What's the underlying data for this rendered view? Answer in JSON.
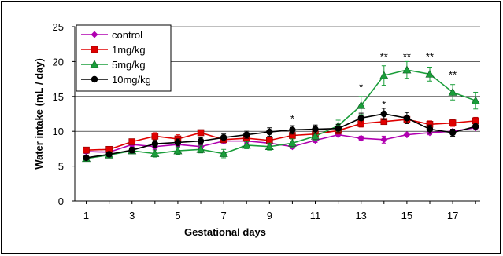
{
  "chart_data": {
    "type": "line",
    "xlabel": "Gestational days",
    "ylabel": "Water intake (mL / day)",
    "x": [
      1,
      2,
      3,
      4,
      5,
      6,
      7,
      8,
      9,
      10,
      11,
      12,
      13,
      14,
      15,
      16,
      17,
      18
    ],
    "xticks": [
      "1",
      "3",
      "5",
      "7",
      "9",
      "11",
      "13",
      "15",
      "17"
    ],
    "yticks": [
      "0",
      "5",
      "10",
      "15",
      "20",
      "25"
    ],
    "ylim": [
      0,
      25
    ],
    "xlim": [
      0.5,
      18.2
    ],
    "grid": "horizontal",
    "legend_position": "top-left",
    "series": [
      {
        "name": "control",
        "color": "#b000b0",
        "marker": "diamond",
        "values": [
          7.1,
          7.0,
          8.1,
          7.8,
          8.1,
          7.8,
          8.6,
          8.6,
          8.3,
          7.8,
          8.7,
          9.5,
          9.0,
          8.8,
          9.5,
          9.8,
          10.0,
          10.5
        ],
        "errors": [
          0.3,
          0.3,
          0.3,
          0.4,
          0.3,
          0.3,
          0.3,
          0.3,
          0.3,
          0.3,
          0.3,
          0.3,
          0.3,
          0.5,
          0.3,
          0.3,
          0.3,
          0.3
        ]
      },
      {
        "name": "1mg/kg",
        "color": "#e00000",
        "marker": "square",
        "values": [
          7.3,
          7.4,
          8.5,
          9.3,
          8.9,
          9.8,
          8.8,
          9.0,
          8.7,
          9.4,
          9.6,
          10.1,
          11.1,
          11.4,
          11.7,
          11.0,
          11.2,
          11.5
        ],
        "errors": [
          0.3,
          0.3,
          0.3,
          0.5,
          0.6,
          0.4,
          0.4,
          0.4,
          0.4,
          0.5,
          0.5,
          0.5,
          0.5,
          0.4,
          0.5,
          0.5,
          0.5,
          0.5
        ]
      },
      {
        "name": "5mg/kg",
        "color": "#1a9e3a",
        "marker": "triangle",
        "values": [
          6.1,
          6.6,
          7.2,
          6.8,
          7.2,
          7.4,
          6.8,
          8.0,
          7.8,
          8.3,
          9.3,
          10.8,
          13.7,
          18.0,
          18.8,
          18.2,
          15.6,
          14.4
        ],
        "errors": [
          0.3,
          0.3,
          0.4,
          0.5,
          0.5,
          0.5,
          0.6,
          0.5,
          0.5,
          0.6,
          0.6,
          0.8,
          1.3,
          1.4,
          1.2,
          1.0,
          1.1,
          1.2
        ]
      },
      {
        "name": "10mg/kg",
        "color": "#000000",
        "marker": "circle",
        "values": [
          6.2,
          6.7,
          7.3,
          8.2,
          8.4,
          8.6,
          9.1,
          9.5,
          9.9,
          10.2,
          10.3,
          10.4,
          11.9,
          12.5,
          11.9,
          10.3,
          9.8,
          10.7
        ],
        "errors": [
          0.3,
          0.3,
          0.4,
          0.5,
          0.5,
          0.5,
          0.5,
          0.5,
          0.6,
          0.6,
          0.6,
          0.6,
          0.7,
          0.8,
          0.8,
          0.6,
          0.5,
          0.5
        ]
      }
    ],
    "annotations": [
      {
        "x": 10,
        "y": 11.9,
        "text": "*"
      },
      {
        "x": 13,
        "y": 16.4,
        "text": "*"
      },
      {
        "x": 14,
        "y": 20.8,
        "text": "**"
      },
      {
        "x": 15,
        "y": 20.8,
        "text": "**"
      },
      {
        "x": 16,
        "y": 20.8,
        "text": "**"
      },
      {
        "x": 17,
        "y": 18.2,
        "text": "**"
      },
      {
        "x": 14,
        "y": 13.9,
        "text": "*"
      }
    ]
  }
}
